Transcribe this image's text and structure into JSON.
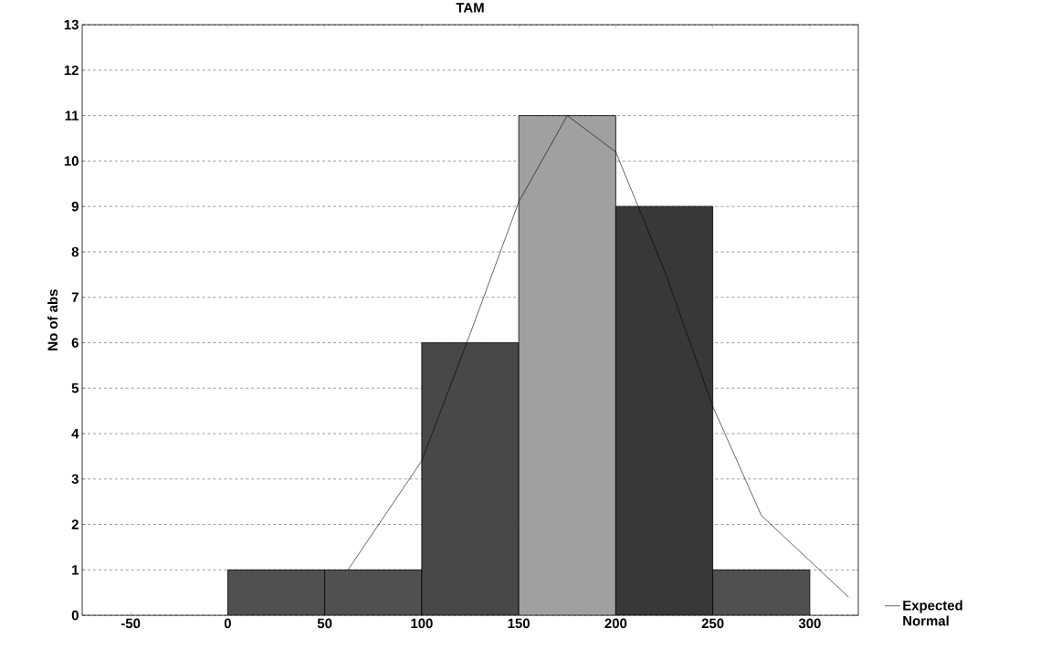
{
  "chart_data": {
    "type": "histogram",
    "title": "TAM",
    "ylabel": "No of abs",
    "bins": [
      0,
      50,
      100,
      150,
      200,
      250,
      300
    ],
    "values": [
      1,
      1,
      6,
      11,
      9,
      1
    ],
    "colors": [
      "#505050",
      "#505050",
      "#484848",
      "#a0a0a0",
      "#383838",
      "#505050"
    ],
    "series": [
      {
        "name": "Expected Normal",
        "type": "line",
        "color": "#000000",
        "x": [
          62,
          100,
          125,
          150,
          175,
          200,
          225,
          250,
          275,
          320
        ],
        "values": [
          1.0,
          3.4,
          6.2,
          9.1,
          11.0,
          10.2,
          7.6,
          4.6,
          2.2,
          0.4
        ]
      }
    ],
    "xlim": [
      -75,
      325
    ],
    "xticks": [
      -50,
      0,
      50,
      100,
      150,
      200,
      250,
      300
    ],
    "ylim": [
      0,
      13
    ],
    "yticks": [
      0,
      1,
      2,
      3,
      4,
      5,
      6,
      7,
      8,
      9,
      10,
      11,
      12,
      13
    ],
    "grid": "y",
    "legend": "bottom right",
    "marker": "none",
    "line_style": "solid"
  }
}
